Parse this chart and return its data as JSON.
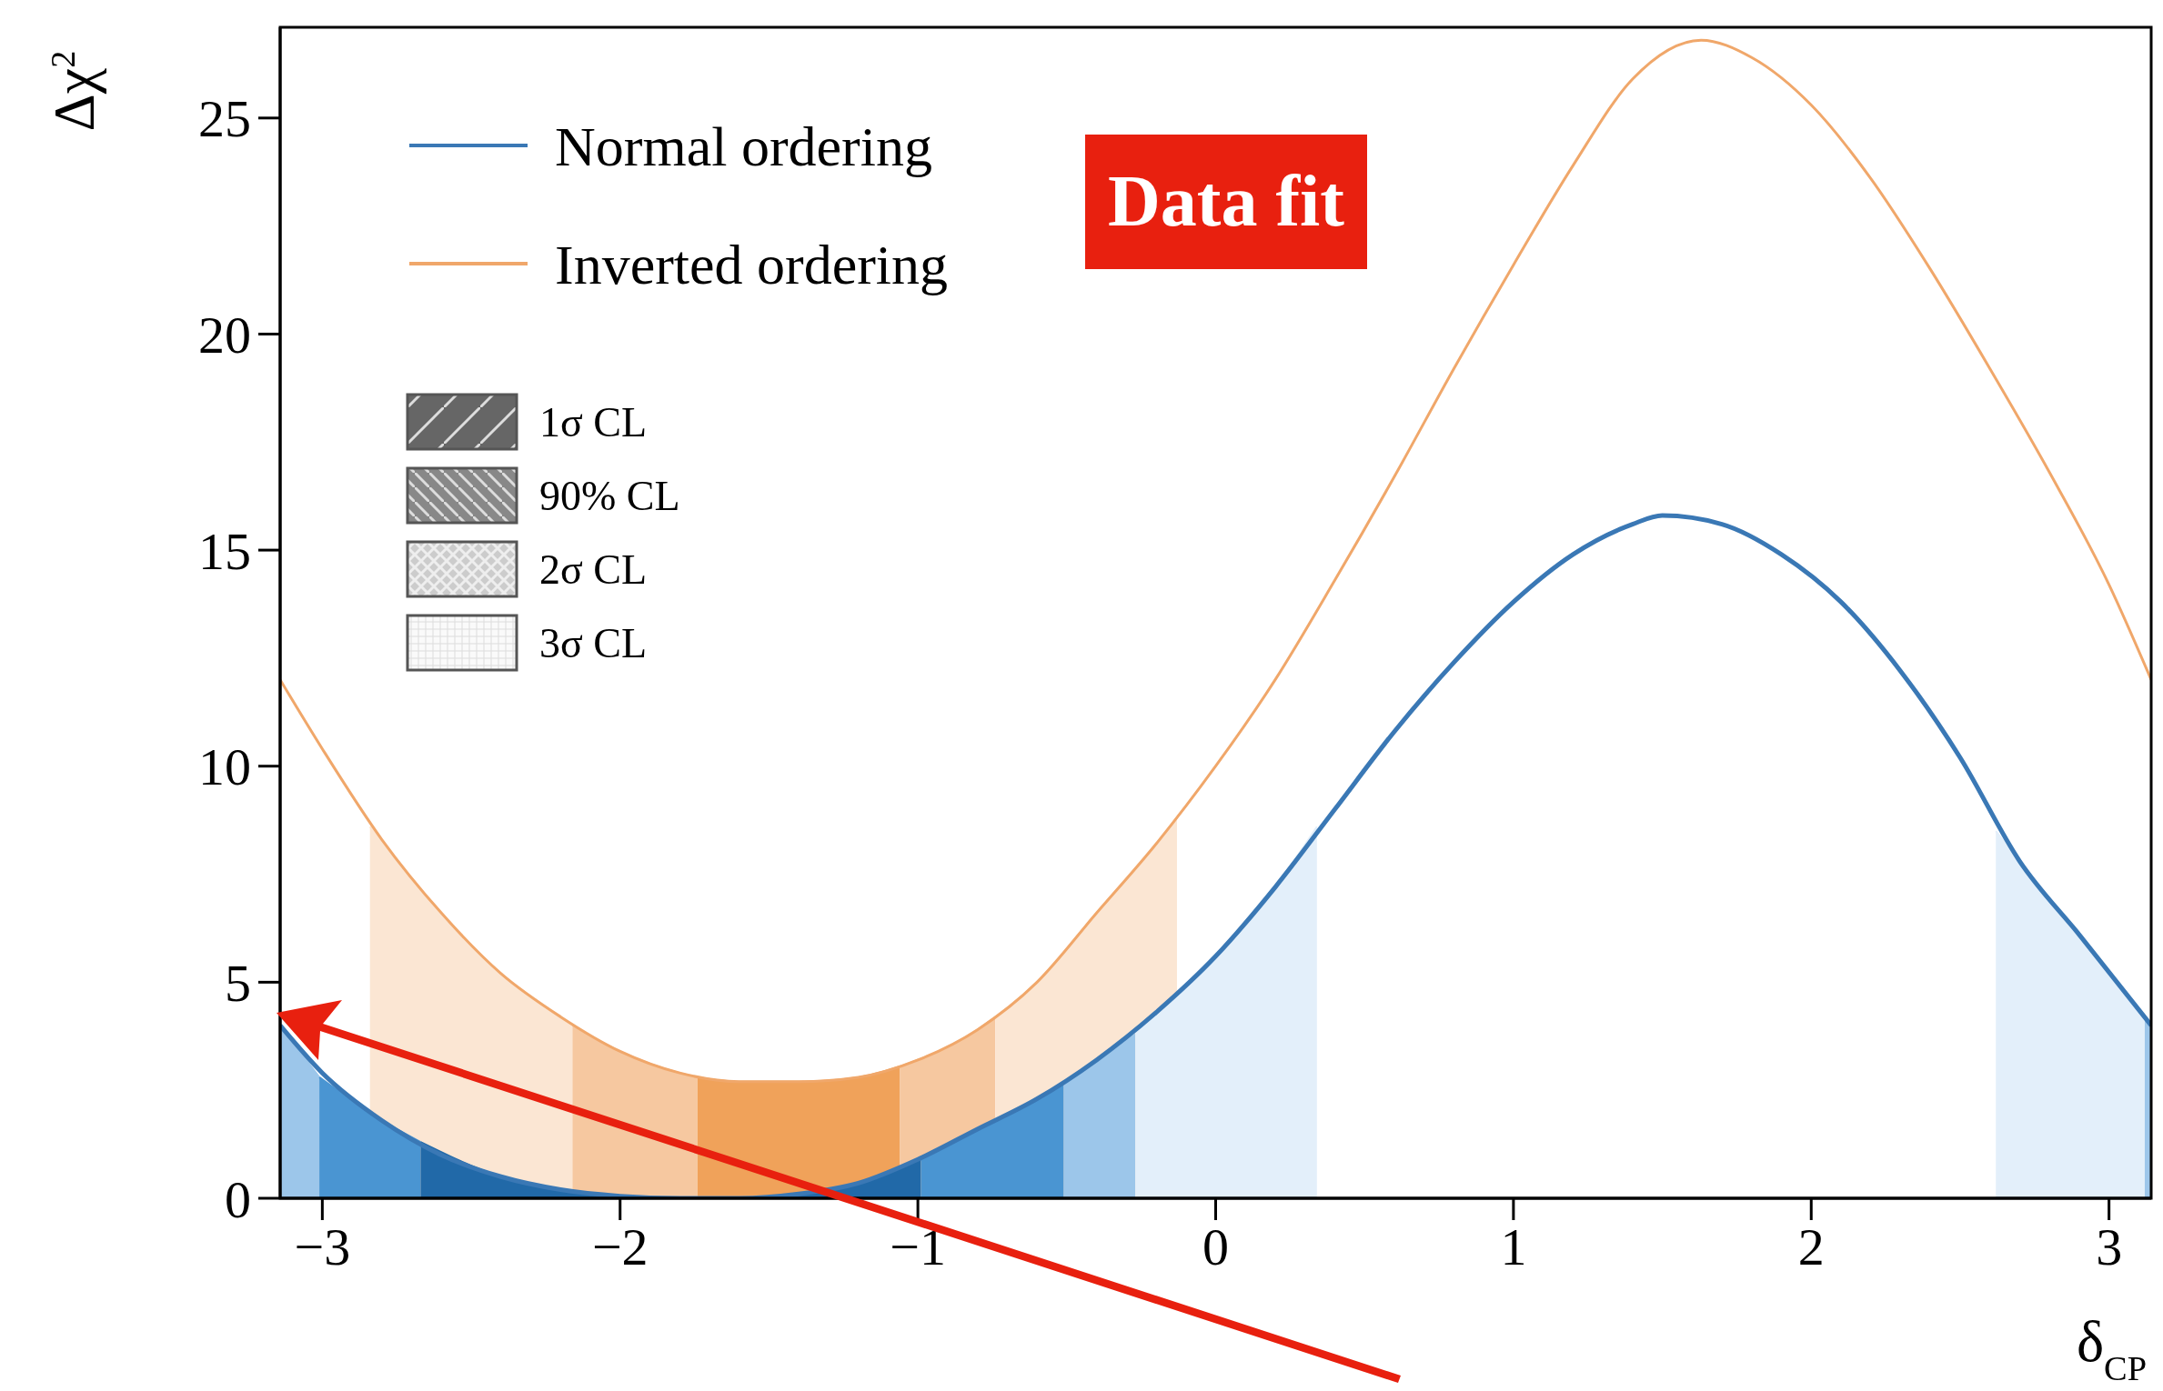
{
  "chart_data": {
    "type": "line",
    "xlabel": "δ$_{CP}$",
    "ylabel": "Δχ$^{2}$",
    "xlim": [
      -3.1416,
      3.1416
    ],
    "ylim": [
      0,
      27.1
    ],
    "xticks": [
      {
        "value": -3,
        "label": "−3"
      },
      {
        "value": -2,
        "label": "−2"
      },
      {
        "value": -1,
        "label": "−1"
      },
      0,
      1,
      2,
      3
    ],
    "yticks": [
      0,
      5,
      10,
      15,
      20,
      25
    ],
    "legend": "top left",
    "annotations": [
      "Data fit",
      "1σ CL",
      "90% CL",
      "2σ CL",
      "3σ CL"
    ],
    "series": [
      {
        "name": "Normal ordering",
        "type": "line",
        "color": "#3a78b5",
        "x": [
          -3.1416,
          -3.0,
          -2.8,
          -2.6,
          -2.4,
          -2.2,
          -2.0,
          -1.8,
          -1.6,
          -1.4,
          -1.2,
          -1.0,
          -0.8,
          -0.6,
          -0.4,
          -0.2,
          0,
          0.2,
          0.4,
          0.6,
          0.8,
          1.0,
          1.2,
          1.4,
          1.5,
          1.7,
          1.9,
          2.1,
          2.3,
          2.5,
          2.7,
          2.9,
          3.1416
        ],
        "values": [
          4.0,
          2.9,
          1.8,
          1.0,
          0.5,
          0.2,
          0.05,
          0,
          0,
          0.1,
          0.35,
          0.9,
          1.6,
          2.3,
          3.2,
          4.3,
          5.6,
          7.2,
          9.0,
          10.8,
          12.4,
          13.8,
          14.9,
          15.6,
          15.8,
          15.6,
          14.9,
          13.8,
          12.2,
          10.2,
          7.8,
          6.1,
          4.0
        ]
      },
      {
        "name": "Inverted ordering",
        "type": "line",
        "color": "#f0a76a",
        "x": [
          -3.1416,
          -3.0,
          -2.8,
          -2.6,
          -2.4,
          -2.2,
          -2.0,
          -1.8,
          -1.6,
          -1.4,
          -1.2,
          -1.0,
          -0.8,
          -0.6,
          -0.4,
          -0.2,
          0,
          0.2,
          0.4,
          0.6,
          0.8,
          1.0,
          1.2,
          1.4,
          1.63,
          1.8,
          2.0,
          2.2,
          2.4,
          2.6,
          2.8,
          3.0,
          3.1416
        ],
        "values": [
          12.0,
          10.4,
          8.3,
          6.6,
          5.2,
          4.2,
          3.4,
          2.9,
          2.7,
          2.7,
          2.8,
          3.2,
          3.9,
          5.0,
          6.6,
          8.2,
          10.0,
          12.0,
          14.3,
          16.7,
          19.2,
          21.6,
          23.9,
          25.9,
          26.8,
          26.4,
          25.3,
          23.6,
          21.5,
          19.2,
          16.8,
          14.2,
          12.0
        ]
      },
      {
        "type": "area",
        "color": "#fbe6d3",
        "x": [
          -2.84,
          -2.6,
          -2.4,
          -2.2,
          -2.16
        ],
        "values": [
          8.6,
          6.6,
          5.2,
          4.2,
          4.0
        ]
      },
      {
        "type": "area",
        "color": "#f6c8a0",
        "x": [
          -2.16,
          -2.0,
          -1.8,
          -1.74
        ],
        "values": [
          4.0,
          3.4,
          2.9,
          2.8
        ]
      },
      {
        "type": "area",
        "color": "#f0a25a",
        "x": [
          -1.74,
          -1.6,
          -1.4,
          -1.2,
          -1.06
        ],
        "values": [
          2.8,
          2.7,
          2.7,
          2.8,
          3.05
        ]
      },
      {
        "type": "area",
        "color": "#f6c8a0",
        "x": [
          -1.06,
          -0.8,
          -0.74
        ],
        "values": [
          3.05,
          3.9,
          4.2
        ]
      },
      {
        "type": "area",
        "color": "#fbe6d3",
        "x": [
          -0.74,
          -0.6,
          -0.4,
          -0.2,
          -0.13
        ],
        "values": [
          4.2,
          5.0,
          6.6,
          8.2,
          8.8
        ]
      },
      {
        "type": "area",
        "color": "#9cc6ea",
        "x": [
          -3.1416,
          -3.01
        ],
        "values": [
          4.0,
          2.8
        ]
      },
      {
        "type": "area",
        "color": "#4a95d2",
        "x": [
          -3.01,
          -2.8,
          -2.67
        ],
        "values": [
          2.8,
          1.8,
          1.3
        ]
      },
      {
        "type": "area",
        "color": "#2169a8",
        "x": [
          -2.67,
          -2.4,
          -2.2,
          -2.0,
          -1.8,
          -1.6,
          -1.4,
          -1.2,
          -0.99
        ],
        "values": [
          1.3,
          0.5,
          0.2,
          0.05,
          0,
          0,
          0.1,
          0.35,
          0.9
        ]
      },
      {
        "type": "area",
        "color": "#4a95d2",
        "x": [
          -0.99,
          -0.8,
          -0.6,
          -0.51
        ],
        "values": [
          0.9,
          1.6,
          2.3,
          2.7
        ]
      },
      {
        "type": "area",
        "color": "#9cc6ea",
        "x": [
          -0.51,
          -0.4,
          -0.27
        ],
        "values": [
          2.7,
          3.2,
          3.8
        ]
      },
      {
        "type": "area",
        "color": "#e3effa",
        "x": [
          -0.27,
          -0.2,
          0,
          0.2,
          0.34
        ],
        "values": [
          3.8,
          4.3,
          5.6,
          7.2,
          8.6
        ]
      },
      {
        "type": "area",
        "color": "#e3effa",
        "x": [
          2.62,
          2.7,
          2.9,
          3.12
        ],
        "values": [
          8.5,
          7.8,
          6.1,
          4.2
        ]
      },
      {
        "type": "area",
        "color": "#9cc6ea",
        "x": [
          3.12,
          3.1416
        ],
        "values": [
          4.2,
          4.0
        ]
      }
    ]
  }
}
